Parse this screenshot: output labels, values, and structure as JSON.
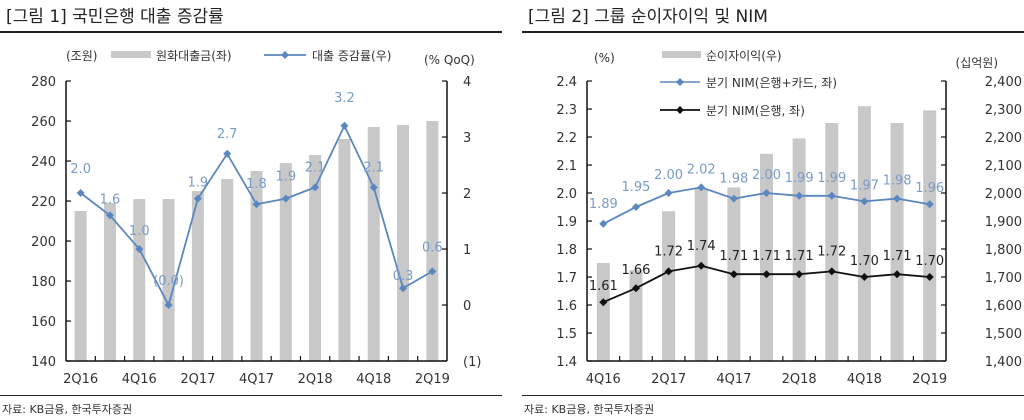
{
  "charts": [
    {
      "title": "[그림 1] 국민은행 대출 증감률",
      "source": "자료: KB금융, 한국투자증권"
    },
    {
      "title": "[그림 2] 그룹 순이자이익 및 NIM",
      "source": "자료: KB금융, 한국투자증권"
    }
  ],
  "colors": {
    "bar": "#c8c8c8",
    "blue_line": "#5b87c0",
    "blue_label": "#7a9cc8",
    "black_line": "#111111",
    "axis": "#111111"
  },
  "chart_data": [
    {
      "type": "bar+line",
      "title": "[그림 1] 국민은행 대출 증감률",
      "categories": [
        "2Q16",
        "3Q16",
        "4Q16",
        "1Q17",
        "2Q17",
        "3Q17",
        "4Q17",
        "1Q18",
        "2Q18",
        "3Q18",
        "4Q18",
        "1Q19",
        "2Q19"
      ],
      "xtick_labels": [
        "2Q16",
        "4Q16",
        "2Q17",
        "4Q17",
        "2Q18",
        "4Q18",
        "2Q19"
      ],
      "left_axis": {
        "unit_label": "(조원)",
        "ylim": [
          140,
          280
        ],
        "ticks": [
          "140",
          "160",
          "180",
          "200",
          "220",
          "240",
          "260",
          "280"
        ]
      },
      "right_axis": {
        "unit_label": "(% QoQ)",
        "ylim": [
          -1,
          4
        ],
        "ticks": [
          "(1)",
          "0",
          "1",
          "2",
          "3",
          "4"
        ]
      },
      "series": [
        {
          "name": "원화대출금(좌)",
          "type": "bar",
          "axis": "left",
          "values": [
            215,
            219,
            221,
            221,
            225,
            231,
            235,
            239,
            243,
            251,
            257,
            258,
            260
          ]
        },
        {
          "name": "대출 증감률(우)",
          "type": "line",
          "axis": "right",
          "values": [
            2.0,
            1.6,
            1.0,
            0.0,
            1.9,
            2.7,
            1.8,
            1.9,
            2.1,
            3.2,
            2.1,
            0.3,
            0.6
          ],
          "labels": [
            "2.0",
            "1.6",
            "1.0",
            "(0.0)",
            "1.9",
            "2.7",
            "1.8",
            "1.9",
            "2.1",
            "3.2",
            "2.1",
            "0.3",
            "0.6"
          ]
        }
      ],
      "grid": false,
      "legend_position": "top"
    },
    {
      "type": "bar+line",
      "title": "[그림 2] 그룹 순이자이익 및 NIM",
      "categories": [
        "4Q16",
        "1Q17",
        "2Q17",
        "3Q17",
        "4Q17",
        "1Q18",
        "2Q18",
        "3Q18",
        "4Q18",
        "1Q19",
        "2Q19"
      ],
      "xtick_labels": [
        "4Q16",
        "2Q17",
        "4Q17",
        "2Q18",
        "4Q18",
        "2Q19"
      ],
      "left_axis": {
        "unit_label": "(%)",
        "ylim": [
          1.4,
          2.4
        ],
        "ticks": [
          "1.4",
          "1.5",
          "1.6",
          "1.7",
          "1.8",
          "1.9",
          "2.0",
          "2.1",
          "2.2",
          "2.3",
          "2.4"
        ]
      },
      "right_axis": {
        "unit_label": "(십억원)",
        "ylim": [
          1400,
          2400
        ],
        "ticks": [
          "1,400",
          "1,500",
          "1,600",
          "1,700",
          "1,800",
          "1,900",
          "2,000",
          "2,100",
          "2,200",
          "2,300",
          "2,400"
        ]
      },
      "series": [
        {
          "name": "순이자이익(우)",
          "type": "bar",
          "axis": "right",
          "values": [
            1750,
            1725,
            1935,
            2015,
            2020,
            2140,
            2195,
            2250,
            2310,
            2250,
            2295
          ]
        },
        {
          "name": "분기 NIM(은행+카드, 좌)",
          "type": "line",
          "axis": "left",
          "color": "blue",
          "values": [
            1.89,
            1.95,
            2.0,
            2.02,
            1.98,
            2.0,
            1.99,
            1.99,
            1.97,
            1.98,
            1.96
          ],
          "labels": [
            "1.89",
            "1.95",
            "2.00",
            "2.02",
            "1.98",
            "2.00",
            "1.99",
            "1.99",
            "1.97",
            "1.98",
            "1.96"
          ]
        },
        {
          "name": "분기 NIM(은행, 좌)",
          "type": "line",
          "axis": "left",
          "color": "black",
          "values": [
            1.61,
            1.66,
            1.72,
            1.74,
            1.71,
            1.71,
            1.71,
            1.72,
            1.7,
            1.71,
            1.7
          ],
          "labels": [
            "1.61",
            "1.66",
            "1.72",
            "1.74",
            "1.71",
            "1.71",
            "1.71",
            "1.72",
            "1.70",
            "1.71",
            "1.70"
          ]
        }
      ],
      "grid": false,
      "legend_position": "top"
    }
  ]
}
